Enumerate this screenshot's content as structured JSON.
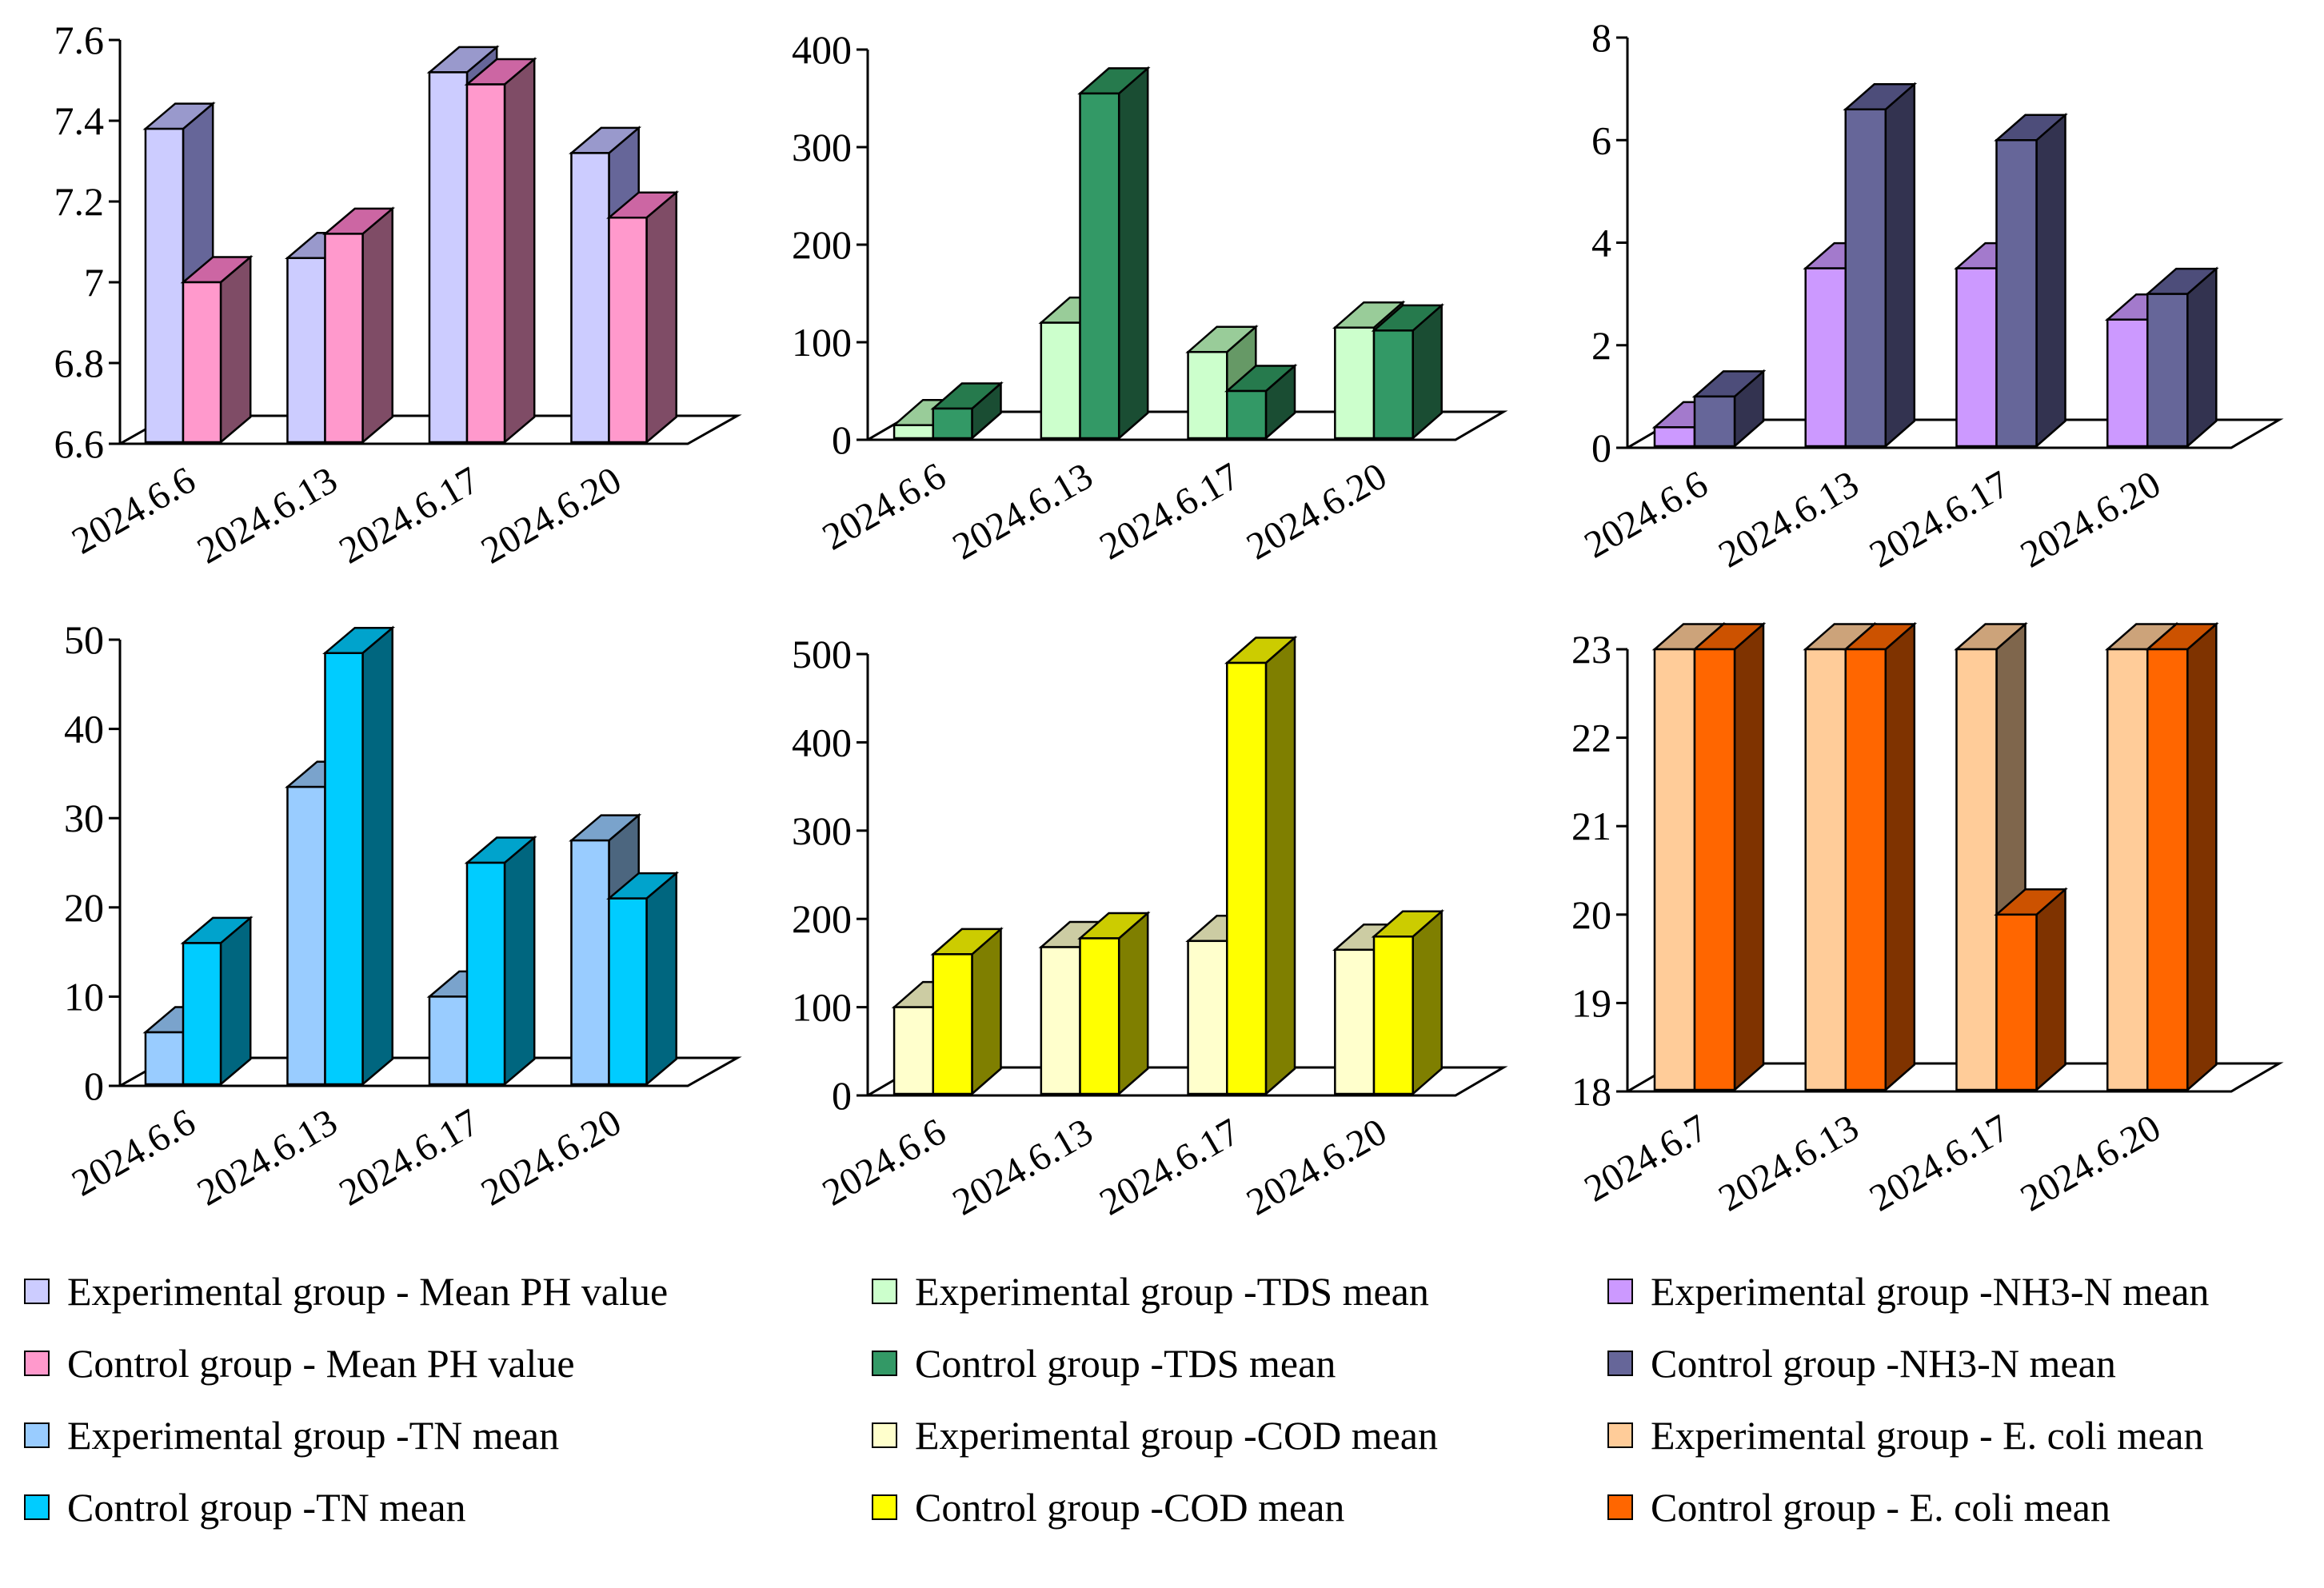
{
  "chart_data": [
    {
      "type": "bar",
      "title": "",
      "xlabel": "",
      "ylabel": "",
      "categories": [
        "2024.6.6",
        "2024.6.13",
        "2024.6.17",
        "2024.6.20"
      ],
      "ylim": [
        6.6,
        7.6
      ],
      "yticks": [
        6.6,
        6.8,
        7,
        7.2,
        7.4,
        7.6
      ],
      "ytick_labels": [
        "6.6",
        "6.8",
        "7",
        "7.2",
        "7.4",
        "7.6"
      ],
      "series": [
        {
          "name": "Experimental group - Mean PH value",
          "values": [
            7.38,
            7.06,
            7.52,
            7.32
          ],
          "color": "#ccccff",
          "side": "#666699",
          "top": "#9999cc"
        },
        {
          "name": "Control group - Mean PH value",
          "values": [
            7.0,
            7.12,
            7.49,
            7.16
          ],
          "color": "#ff99cc",
          "side": "#7f4c66",
          "top": "#cc66a3"
        }
      ]
    },
    {
      "type": "bar",
      "title": "",
      "xlabel": "",
      "ylabel": "",
      "categories": [
        "2024.6.6",
        "2024.6.13",
        "2024.6.17",
        "2024.6.20"
      ],
      "ylim": [
        0,
        400
      ],
      "yticks": [
        0,
        100,
        200,
        300,
        400
      ],
      "ytick_labels": [
        "0",
        "100",
        "200",
        "300",
        "400"
      ],
      "series": [
        {
          "name": "Experimental group -TDS mean",
          "values": [
            15,
            120,
            90,
            115
          ],
          "color": "#ccffcc",
          "side": "#669966",
          "top": "#99cc99"
        },
        {
          "name": "Control group -TDS mean",
          "values": [
            32,
            355,
            50,
            112
          ],
          "color": "#339966",
          "side": "#1a4d33",
          "top": "#267a4d"
        }
      ]
    },
    {
      "type": "bar",
      "title": "",
      "xlabel": "",
      "ylabel": "",
      "categories": [
        "2024.6.6",
        "2024.6.13",
        "2024.6.17",
        "2024.6.20"
      ],
      "ylim": [
        0,
        8
      ],
      "yticks": [
        0,
        2,
        4,
        6,
        8
      ],
      "ytick_labels": [
        "0",
        "2",
        "4",
        "6",
        "8"
      ],
      "series": [
        {
          "name": "Experimental group -NH3-N mean",
          "values": [
            0.4,
            3.5,
            3.5,
            2.5
          ],
          "color": "#cc99ff",
          "side": "#664c7f",
          "top": "#a37acc"
        },
        {
          "name": "Control group -NH3-N mean",
          "values": [
            1.0,
            6.6,
            6.0,
            3.0
          ],
          "color": "#666699",
          "side": "#333350",
          "top": "#4d4d7a"
        }
      ]
    },
    {
      "type": "bar",
      "title": "",
      "xlabel": "",
      "ylabel": "",
      "categories": [
        "2024.6.6",
        "2024.6.13",
        "2024.6.17",
        "2024.6.20"
      ],
      "ylim": [
        0,
        50
      ],
      "yticks": [
        0,
        10,
        20,
        30,
        40,
        50
      ],
      "ytick_labels": [
        "0",
        "10",
        "20",
        "30",
        "40",
        "50"
      ],
      "series": [
        {
          "name": "Experimental group -TN mean",
          "values": [
            6,
            33.5,
            10,
            27.5
          ],
          "color": "#99ccff",
          "side": "#4c667f",
          "top": "#7aa3cc"
        },
        {
          "name": "Control group -TN mean",
          "values": [
            16,
            48.5,
            25,
            21
          ],
          "color": "#00ccff",
          "side": "#00667f",
          "top": "#00a3cc"
        }
      ]
    },
    {
      "type": "bar",
      "title": "",
      "xlabel": "",
      "ylabel": "",
      "categories": [
        "2024.6.6",
        "2024.6.13",
        "2024.6.17",
        "2024.6.20"
      ],
      "ylim": [
        0,
        500
      ],
      "yticks": [
        0,
        100,
        200,
        300,
        400,
        500
      ],
      "ytick_labels": [
        "0",
        "100",
        "200",
        "300",
        "400",
        "500"
      ],
      "series": [
        {
          "name": "Experimental group -COD mean",
          "values": [
            100,
            168,
            175,
            165
          ],
          "color": "#ffffcc",
          "side": "#7f7f66",
          "top": "#cccca3"
        },
        {
          "name": "Control group -COD mean",
          "values": [
            160,
            178,
            490,
            180
          ],
          "color": "#ffff00",
          "side": "#7f7f00",
          "top": "#cccc00"
        }
      ]
    },
    {
      "type": "bar",
      "title": "",
      "xlabel": "",
      "ylabel": "",
      "categories": [
        "2024.6.7",
        "2024.6.13",
        "2024.6.17",
        "2024.6.20"
      ],
      "ylim": [
        18,
        23
      ],
      "yticks": [
        18,
        19,
        20,
        21,
        22,
        23
      ],
      "ytick_labels": [
        "18",
        "19",
        "20",
        "21",
        "22",
        "23"
      ],
      "series": [
        {
          "name": "Experimental group - E. coli mean",
          "values": [
            23,
            23,
            23,
            23
          ],
          "color": "#ffcc99",
          "side": "#7f664c",
          "top": "#cca37a"
        },
        {
          "name": "Control group - E. coli mean",
          "values": [
            23,
            23,
            20,
            23
          ],
          "color": "#ff6600",
          "side": "#7f3300",
          "top": "#cc5200"
        }
      ]
    }
  ],
  "legend": {
    "placement": "bottom",
    "entries": [
      {
        "label": "Experimental group - Mean PH value",
        "color": "#ccccff"
      },
      {
        "label": "Experimental group -TDS mean",
        "color": "#ccffcc"
      },
      {
        "label": "Experimental group -NH3-N mean",
        "color": "#cc99ff"
      },
      {
        "label": "Control group - Mean PH value",
        "color": "#ff99cc"
      },
      {
        "label": "Control group -TDS mean",
        "color": "#339966"
      },
      {
        "label": "Control group -NH3-N mean",
        "color": "#666699"
      },
      {
        "label": "Experimental group -TN mean",
        "color": "#99ccff"
      },
      {
        "label": "Experimental group -COD mean",
        "color": "#ffffcc"
      },
      {
        "label": "Experimental group - E. coli mean",
        "color": "#ffcc99"
      },
      {
        "label": "Control group -TN mean",
        "color": "#00ccff"
      },
      {
        "label": "Control group -COD mean",
        "color": "#ffff00"
      },
      {
        "label": "Control group - E. coli mean",
        "color": "#ff6600"
      }
    ]
  }
}
